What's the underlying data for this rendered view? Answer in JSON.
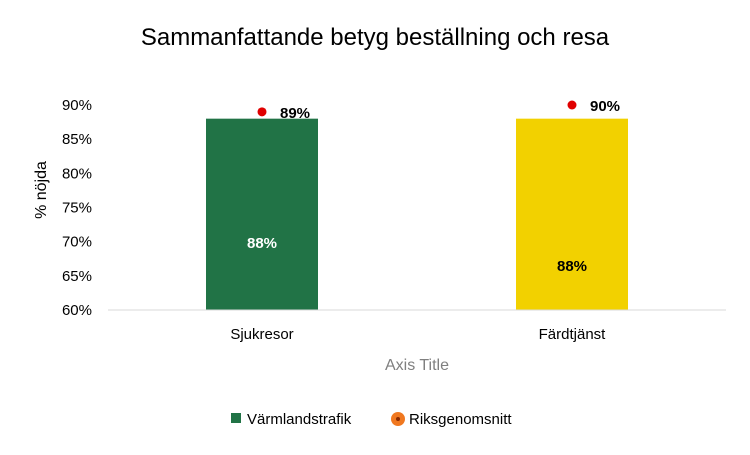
{
  "chart_data": {
    "type": "bar",
    "title": "Sammanfattande betyg beställning och resa",
    "xlabel": "Axis Title",
    "ylabel": "% nöjda",
    "categories": [
      "Sjukresor",
      "Färdtjänst"
    ],
    "ylim": [
      60,
      90
    ],
    "yticks": [
      "60%",
      "65%",
      "70%",
      "75%",
      "80%",
      "85%",
      "90%"
    ],
    "grid": false,
    "legend_position": "bottom",
    "series": [
      {
        "name": "Värmlandstrafik",
        "kind": "bar",
        "values": [
          88,
          88
        ],
        "labels": [
          "88%",
          "88%"
        ],
        "colors": [
          "#217346",
          "#f2d100"
        ],
        "label_colors": [
          "#ffffff",
          "#000000"
        ]
      },
      {
        "name": "Riksgenomsnitt",
        "kind": "marker",
        "values": [
          89,
          90
        ],
        "labels": [
          "89%",
          "90%"
        ],
        "color": "#e00000",
        "legend_color": "#f07820"
      }
    ]
  }
}
